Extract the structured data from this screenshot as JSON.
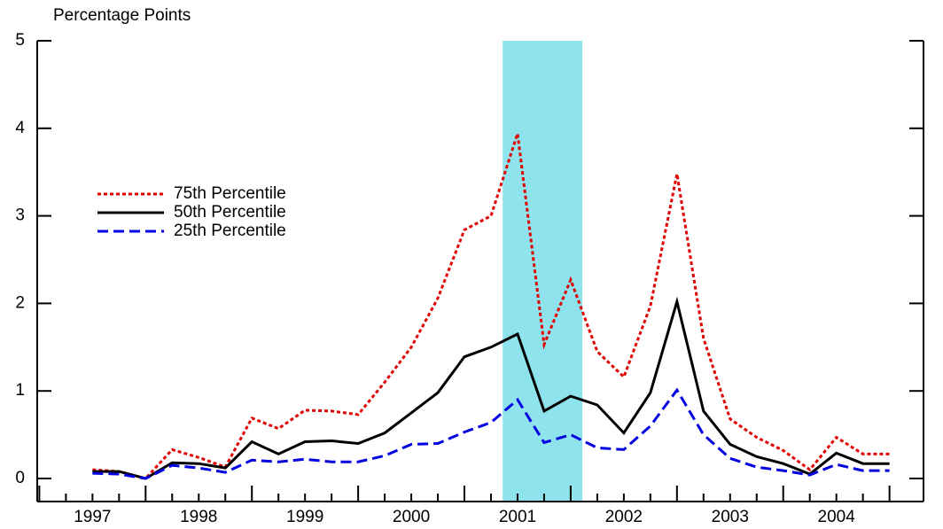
{
  "chart_data": {
    "type": "line",
    "ylabel": "Percentage Points",
    "x": [
      1997.5,
      1997.75,
      1998.0,
      1998.25,
      1998.5,
      1998.75,
      1999.0,
      1999.25,
      1999.5,
      1999.75,
      2000.0,
      2000.25,
      2000.5,
      2000.75,
      2001.0,
      2001.25,
      2001.5,
      2001.75,
      2002.0,
      2002.25,
      2002.5,
      2002.75,
      2003.0,
      2003.25,
      2003.5,
      2003.75,
      2004.0,
      2004.25,
      2004.5,
      2004.75,
      2005.0
    ],
    "series": [
      {
        "name": "75th Percentile",
        "color": "#e00000",
        "dash": "4 3",
        "values": [
          0.1,
          0.08,
          0.0,
          0.33,
          0.24,
          0.13,
          0.69,
          0.57,
          0.78,
          0.77,
          0.73,
          1.1,
          1.5,
          2.06,
          2.84,
          3.0,
          3.94,
          1.53,
          2.27,
          1.45,
          1.16,
          1.97,
          3.48,
          1.6,
          0.68,
          0.47,
          0.32,
          0.1,
          0.47,
          0.28,
          0.28
        ]
      },
      {
        "name": "50th Percentile",
        "color": "#000000",
        "dash": "none",
        "values": [
          0.08,
          0.08,
          0.0,
          0.18,
          0.17,
          0.12,
          0.42,
          0.28,
          0.42,
          0.43,
          0.4,
          0.52,
          0.75,
          0.98,
          1.39,
          1.5,
          1.65,
          0.77,
          0.94,
          0.84,
          0.52,
          0.98,
          2.02,
          0.77,
          0.39,
          0.25,
          0.17,
          0.05,
          0.29,
          0.17,
          0.17
        ]
      },
      {
        "name": "25th Percentile",
        "color": "#0000e0",
        "dash": "12 6",
        "values": [
          0.06,
          0.05,
          0.0,
          0.15,
          0.12,
          0.07,
          0.21,
          0.19,
          0.22,
          0.19,
          0.19,
          0.26,
          0.39,
          0.4,
          0.53,
          0.64,
          0.9,
          0.41,
          0.5,
          0.35,
          0.33,
          0.6,
          1.01,
          0.5,
          0.23,
          0.13,
          0.09,
          0.04,
          0.16,
          0.09,
          0.09
        ]
      }
    ],
    "shaded_region": {
      "range": [
        2001.36,
        2002.11
      ],
      "color": "#8ee3ec"
    },
    "xlim": [
      1996.98,
      2005.32
    ],
    "xticks": [
      {
        "value": 1997.5,
        "label": "1997"
      },
      {
        "value": 1998.5,
        "label": "1998"
      },
      {
        "value": 1999.5,
        "label": "1999"
      },
      {
        "value": 2000.5,
        "label": "2000"
      },
      {
        "value": 2001.5,
        "label": "2001"
      },
      {
        "value": 2002.5,
        "label": "2002"
      },
      {
        "value": 2003.5,
        "label": "2003"
      },
      {
        "value": 2004.5,
        "label": "2004"
      }
    ],
    "x_major_ticks": [
      1997,
      1998,
      1999,
      2000,
      2001,
      2002,
      2003,
      2004,
      2005
    ],
    "x_minor_step": 0.25,
    "ylim": [
      0,
      5
    ],
    "yticks": [
      0,
      1,
      2,
      3,
      4,
      5
    ]
  }
}
